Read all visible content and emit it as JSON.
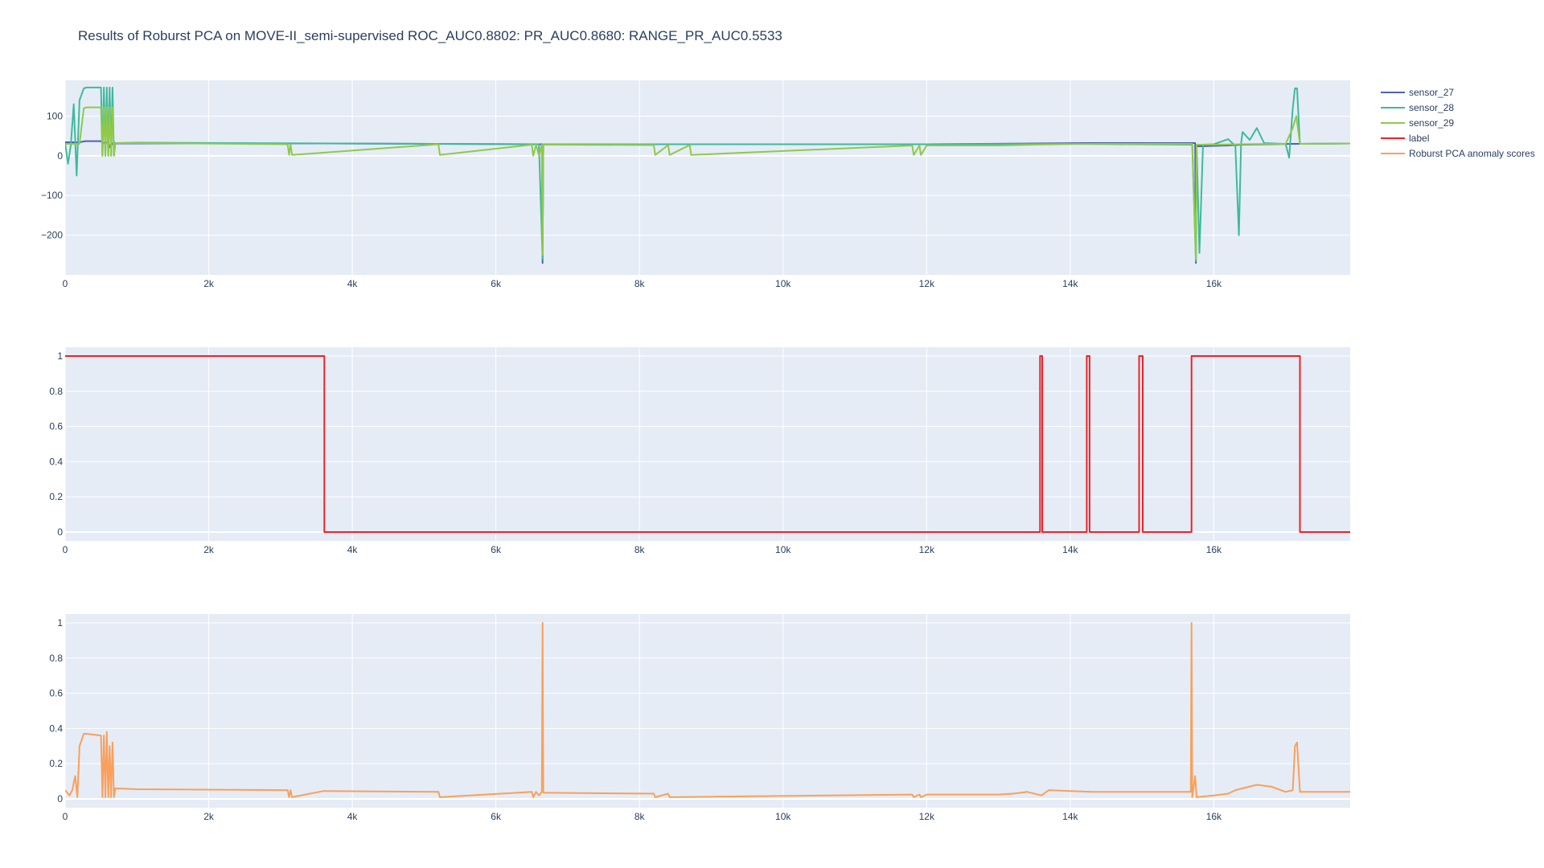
{
  "chart_data": {
    "type": "line",
    "title": "Results of Roburst PCA on MOVE-II_semi-supervised ROC_AUC0.8802: PR_AUC0.8680: RANGE_PR_AUC0.5533",
    "legend": {
      "placement": "right",
      "entries": [
        {
          "name": "sensor_27",
          "color": "#4c62b0"
        },
        {
          "name": "sensor_28",
          "color": "#3fb99c"
        },
        {
          "name": "sensor_29",
          "color": "#8fc94a"
        },
        {
          "name": "label",
          "color": "#e8242a"
        },
        {
          "name": "Roburst PCA anomaly scores",
          "color": "#f9a05a"
        }
      ]
    },
    "grid": true,
    "subplots": [
      {
        "xlim": [
          0,
          17900
        ],
        "ylim": [
          -300,
          190
        ],
        "xticks": [
          0,
          2000,
          4000,
          6000,
          8000,
          10000,
          12000,
          14000,
          16000
        ],
        "xtick_labels": [
          "0",
          "2k",
          "4k",
          "6k",
          "8k",
          "10k",
          "12k",
          "14k",
          "16k"
        ],
        "yticks": [
          100,
          0,
          -100,
          -200
        ],
        "ytick_labels": [
          "100",
          "0",
          "−100",
          "−200"
        ],
        "series": [
          {
            "name": "sensor_27",
            "color": "#4c62b0",
            "x": [
              0,
              200,
              280,
              500,
              520,
              600,
              620,
              680,
              700,
              1000,
              3600,
              6600,
              6640,
              6650,
              6660,
              6700,
              12000,
              14200,
              15700,
              15740,
              15750,
              15760,
              15800,
              16200,
              16400,
              17100,
              17900
            ],
            "y": [
              34,
              34,
              37,
              37,
              32,
              34,
              22,
              34,
              31,
              31,
              31,
              29,
              29,
              -270,
              29,
              29,
              29,
              32,
              32,
              32,
              -270,
              24,
              24,
              26,
              28,
              30,
              31
            ]
          },
          {
            "name": "sensor_28",
            "color": "#3fb99c",
            "x": [
              0,
              40,
              80,
              120,
              160,
              200,
              260,
              300,
              500,
              520,
              540,
              560,
              580,
              600,
              620,
              640,
              660,
              680,
              700,
              1000,
              6600,
              6650,
              6660,
              6700,
              12000,
              14000,
              15700,
              15750,
              15760,
              15800,
              15850,
              16000,
              16200,
              16300,
              16350,
              16380,
              16400,
              16500,
              16600,
              16700,
              17000,
              17050,
              17100,
              17130,
              17160,
              17200,
              17250,
              17900
            ],
            "y": [
              31,
              -20,
              28,
              130,
              -50,
              140,
              170,
              172,
              172,
              0,
              172,
              0,
              172,
              0,
              172,
              0,
              172,
              0,
              32,
              33,
              29,
              -260,
              29,
              29,
              29,
              30,
              28,
              -265,
              28,
              -245,
              28,
              29,
              42,
              25,
              -200,
              30,
              60,
              40,
              70,
              32,
              30,
              -5,
              120,
              170,
              170,
              30,
              30,
              31
            ]
          },
          {
            "name": "sensor_29",
            "color": "#8fc94a",
            "x": [
              0,
              200,
              260,
              300,
              500,
              520,
              540,
              560,
              580,
              600,
              620,
              640,
              660,
              680,
              700,
              1000,
              3100,
              3120,
              3140,
              3160,
              5200,
              5220,
              6500,
              6520,
              6560,
              6600,
              6640,
              6650,
              6660,
              6700,
              8200,
              8220,
              8400,
              8420,
              8700,
              8720,
              11800,
              11820,
              11900,
              11920,
              12000,
              13000,
              13500,
              14200,
              15700,
              15750,
              15760,
              16000,
              16800,
              17000,
              17100,
              17150,
              17200,
              17250,
              17900
            ],
            "y": [
              30,
              30,
              120,
              122,
              122,
              0,
              122,
              0,
              122,
              0,
              122,
              0,
              122,
              0,
              32,
              32,
              29,
              2,
              29,
              2,
              29,
              2,
              28,
              0,
              28,
              0,
              28,
              -250,
              28,
              28,
              27,
              2,
              27,
              2,
              27,
              2,
              26,
              2,
              26,
              2,
              26,
              26,
              28,
              30,
              30,
              -260,
              28,
              28,
              30,
              30,
              70,
              100,
              30,
              30,
              31
            ]
          }
        ]
      },
      {
        "xlim": [
          0,
          17900
        ],
        "ylim": [
          -0.05,
          1.05
        ],
        "xticks": [
          0,
          2000,
          4000,
          6000,
          8000,
          10000,
          12000,
          14000,
          16000
        ],
        "xtick_labels": [
          "0",
          "2k",
          "4k",
          "6k",
          "8k",
          "10k",
          "12k",
          "14k",
          "16k"
        ],
        "yticks": [
          0,
          0.2,
          0.4,
          0.6,
          0.8,
          1
        ],
        "ytick_labels": [
          "0",
          "0.2",
          "0.4",
          "0.6",
          "0.8",
          "1"
        ],
        "series": [
          {
            "name": "label",
            "color": "#e8242a",
            "x": [
              0,
              3610,
              3610,
              13580,
              13580,
              13610,
              13610,
              14230,
              14230,
              14270,
              14270,
              14960,
              14960,
              15010,
              15010,
              15690,
              15690,
              17200,
              17200,
              17900
            ],
            "y": [
              1,
              1,
              0,
              0,
              1,
              1,
              0,
              0,
              1,
              1,
              0,
              0,
              1,
              1,
              0,
              0,
              1,
              1,
              0,
              0
            ]
          }
        ]
      },
      {
        "xlim": [
          0,
          17900
        ],
        "ylim": [
          -0.05,
          1.05
        ],
        "xticks": [
          0,
          2000,
          4000,
          6000,
          8000,
          10000,
          12000,
          14000,
          16000
        ],
        "xtick_labels": [
          "0",
          "2k",
          "4k",
          "6k",
          "8k",
          "10k",
          "12k",
          "14k",
          "16k"
        ],
        "yticks": [
          0,
          0.2,
          0.4,
          0.6,
          0.8,
          1
        ],
        "ytick_labels": [
          "0",
          "0.2",
          "0.4",
          "0.6",
          "0.8",
          "1"
        ],
        "series": [
          {
            "name": "Roburst PCA anomaly scores",
            "color": "#f9a05a",
            "x": [
              0,
              60,
              100,
              140,
              170,
              200,
              260,
              300,
              500,
              520,
              540,
              560,
              580,
              600,
              620,
              640,
              660,
              680,
              700,
              1000,
              3100,
              3120,
              3140,
              3160,
              3600,
              5200,
              5220,
              6500,
              6520,
              6560,
              6600,
              6640,
              6650,
              6660,
              6700,
              8200,
              8220,
              8400,
              8420,
              11800,
              11820,
              11900,
              11920,
              12000,
              13000,
              13200,
              13400,
              13600,
              13700,
              14000,
              14300,
              15500,
              15680,
              15690,
              15700,
              15740,
              15760,
              16000,
              16200,
              16300,
              16400,
              16600,
              16800,
              17000,
              17100,
              17130,
              17160,
              17200,
              17250,
              17900
            ],
            "y": [
              0.05,
              0.02,
              0.05,
              0.13,
              0.01,
              0.3,
              0.37,
              0.37,
              0.36,
              0.01,
              0.36,
              0.01,
              0.38,
              0.01,
              0.3,
              0.01,
              0.32,
              0.01,
              0.06,
              0.055,
              0.05,
              0.01,
              0.05,
              0.01,
              0.045,
              0.04,
              0.01,
              0.04,
              0.01,
              0.04,
              0.02,
              0.04,
              1.0,
              0.035,
              0.035,
              0.03,
              0.01,
              0.03,
              0.01,
              0.025,
              0.01,
              0.025,
              0.01,
              0.025,
              0.025,
              0.03,
              0.04,
              0.02,
              0.05,
              0.045,
              0.04,
              0.04,
              0.04,
              1.0,
              0.01,
              0.13,
              0.01,
              0.02,
              0.03,
              0.05,
              0.06,
              0.08,
              0.07,
              0.04,
              0.05,
              0.3,
              0.32,
              0.04,
              0.04,
              0.04
            ]
          }
        ]
      }
    ]
  }
}
